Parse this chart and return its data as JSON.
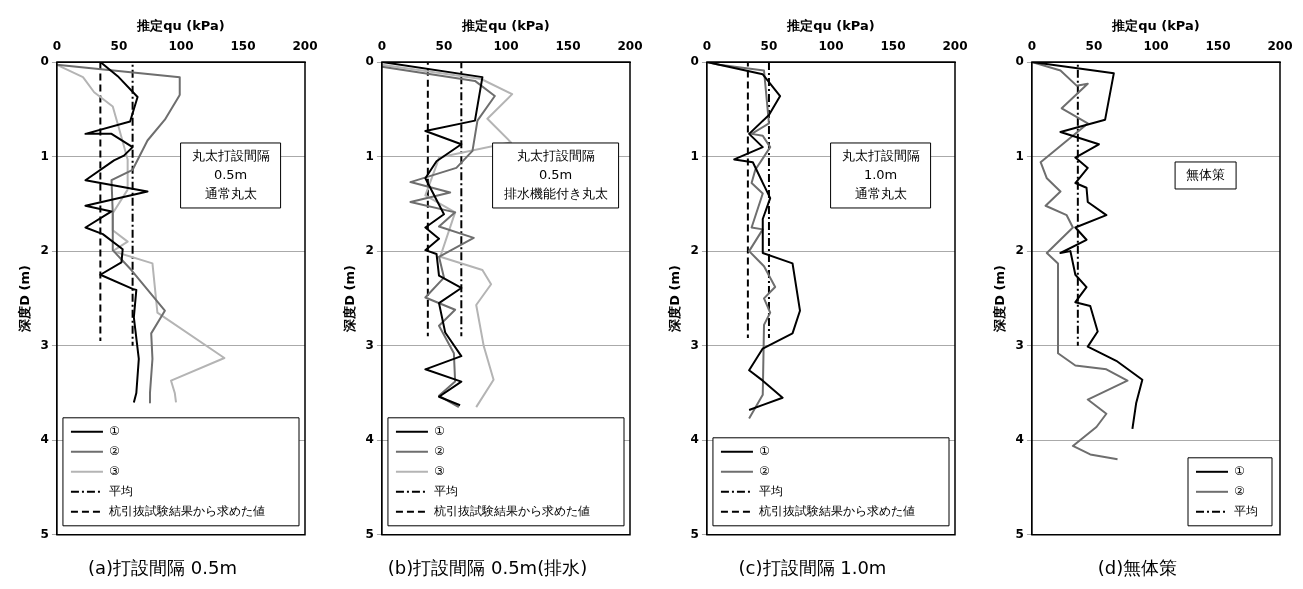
{
  "chart_data": [
    {
      "type": "line",
      "title": "(a)打設間隔 0.5m",
      "xlabel": "推定qu (kPa)",
      "ylabel": "深度D (m)",
      "xlim": [
        0,
        200
      ],
      "xticks": [
        0,
        50,
        100,
        150,
        200
      ],
      "ylim": [
        5,
        0
      ],
      "yticks": [
        0,
        1,
        2,
        3,
        4,
        5
      ],
      "grid": "y",
      "legend": "bottom",
      "marker": "none",
      "annotations": [
        "丸太打設間隔\n0.5m\n通常丸太"
      ],
      "series": [
        {
          "name": "①",
          "color": "#000000",
          "x": [
            35,
            49,
            65,
            59,
            23,
            44,
            61,
            54,
            46,
            23,
            73,
            23,
            44,
            23,
            37,
            53,
            52,
            35,
            61,
            64,
            62,
            66,
            64,
            62
          ],
          "values": [
            0,
            0.15,
            0.37,
            0.63,
            0.76,
            0.76,
            0.9,
            0.99,
            1.04,
            1.25,
            1.37,
            1.52,
            1.58,
            1.75,
            1.82,
            1.98,
            2.12,
            2.25,
            2.4,
            2.41,
            2.7,
            3.14,
            3.5,
            3.6
          ]
        },
        {
          "name": "②",
          "color": "#6e6e6e",
          "x": [
            0,
            99,
            99,
            87,
            73,
            61,
            44,
            45,
            45,
            60,
            87,
            76,
            77,
            75,
            75
          ],
          "values": [
            0.03,
            0.16,
            0.35,
            0.61,
            0.83,
            1.14,
            1.25,
            1.6,
            1.99,
            2.2,
            2.63,
            2.87,
            3.14,
            3.5,
            3.6
          ]
        },
        {
          "name": "③",
          "color": "#b4b4b4",
          "x": [
            0,
            21,
            30,
            45,
            50,
            57,
            57,
            45,
            45,
            57,
            45,
            77,
            81,
            135,
            92,
            95,
            96
          ],
          "values": [
            0.03,
            0.16,
            0.32,
            0.47,
            0.7,
            1.03,
            1.35,
            1.6,
            1.78,
            1.9,
            2.0,
            2.13,
            2.65,
            3.13,
            3.37,
            3.5,
            3.6
          ]
        },
        {
          "name": "平均",
          "color": "#000000",
          "line_style": "dotted",
          "x": [
            61,
            61
          ],
          "values": [
            0,
            3
          ]
        },
        {
          "name": "杭引抜試験結果から求めた値",
          "color": "#000000",
          "line_style": "dashed",
          "x": [
            35,
            35
          ],
          "values": [
            0,
            2.95
          ]
        }
      ]
    },
    {
      "type": "line",
      "title": "(b)打設間隔 0.5m(排水)",
      "xlabel": "推定qu (kPa)",
      "ylabel": "深度D (m)",
      "xlim": [
        0,
        200
      ],
      "xticks": [
        0,
        50,
        100,
        150,
        200
      ],
      "ylim": [
        5,
        0
      ],
      "yticks": [
        0,
        1,
        2,
        3,
        4,
        5
      ],
      "grid": "y",
      "legend": "bottom",
      "marker": "none",
      "annotations": [
        "丸太打設間隔\n0.5m\n排水機能付き丸太"
      ],
      "series": [
        {
          "name": "①",
          "color": "#000000",
          "x": [
            0,
            81,
            75,
            35,
            64,
            44,
            35,
            50,
            35,
            46,
            35,
            44,
            46,
            64,
            46,
            51,
            64,
            35,
            64,
            46,
            63
          ],
          "values": [
            0,
            0.16,
            0.62,
            0.73,
            0.87,
            1.05,
            1.23,
            1.61,
            1.75,
            1.87,
            1.99,
            2.03,
            2.26,
            2.39,
            2.55,
            2.86,
            3.11,
            3.25,
            3.38,
            3.54,
            3.63
          ]
        },
        {
          "name": "②",
          "color": "#6e6e6e",
          "x": [
            0,
            75,
            91,
            77,
            73,
            60,
            23,
            55,
            23,
            59,
            46,
            74,
            46,
            50,
            35,
            59,
            46,
            58,
            59,
            46,
            62
          ],
          "values": [
            0.05,
            0.2,
            0.36,
            0.62,
            0.94,
            1.12,
            1.27,
            1.38,
            1.48,
            1.59,
            1.74,
            1.86,
            2.06,
            2.28,
            2.49,
            2.62,
            2.79,
            3.08,
            3.38,
            3.53,
            3.65
          ]
        },
        {
          "name": "③",
          "color": "#b4b4b4",
          "x": [
            0,
            80,
            105,
            85,
            104,
            46,
            44,
            35,
            59,
            47,
            81,
            88,
            76,
            82,
            90,
            76
          ],
          "values": [
            0.03,
            0.18,
            0.34,
            0.6,
            0.85,
            1.01,
            1.09,
            1.41,
            1.59,
            2.06,
            2.2,
            2.35,
            2.57,
            3.0,
            3.36,
            3.65
          ]
        },
        {
          "name": "平均",
          "color": "#000000",
          "line_style": "dotted",
          "x": [
            64,
            64
          ],
          "values": [
            0,
            2.9
          ]
        },
        {
          "name": "杭引抜試験結果から求めた値",
          "color": "#000000",
          "line_style": "dashed",
          "x": [
            37,
            37
          ],
          "values": [
            0,
            2.9
          ]
        }
      ]
    },
    {
      "type": "line",
      "title": "(c)打設間隔 1.0m",
      "xlabel": "推定qu (kPa)",
      "ylabel": "深度D (m)",
      "xlim": [
        0,
        200
      ],
      "xticks": [
        0,
        50,
        100,
        150,
        200
      ],
      "ylim": [
        5,
        0
      ],
      "yticks": [
        0,
        1,
        2,
        3,
        4,
        5
      ],
      "grid": "y",
      "legend": "bottom",
      "marker": "none",
      "annotations": [
        "丸太打設間隔\n1.0m\n通常丸太"
      ],
      "series": [
        {
          "name": "①",
          "color": "#000000",
          "x": [
            0,
            10,
            45,
            59,
            50,
            34,
            45,
            22,
            37,
            51,
            45,
            45,
            69,
            75,
            69,
            45,
            34,
            45,
            61,
            34
          ],
          "values": [
            0,
            0.03,
            0.13,
            0.36,
            0.56,
            0.76,
            0.9,
            1.03,
            1.06,
            1.44,
            1.66,
            2.02,
            2.13,
            2.63,
            2.87,
            3.03,
            3.26,
            3.37,
            3.55,
            3.68
          ]
        },
        {
          "name": "②",
          "color": "#6e6e6e",
          "x": [
            0,
            10,
            46,
            50,
            36,
            45,
            51,
            39,
            36,
            45,
            36,
            45,
            34,
            46,
            55,
            46,
            51,
            46,
            45,
            34
          ],
          "values": [
            0,
            0.03,
            0.09,
            0.65,
            0.76,
            0.78,
            0.9,
            1.14,
            1.28,
            1.39,
            1.75,
            1.77,
            2.0,
            2.16,
            2.38,
            2.5,
            2.65,
            2.78,
            3.52,
            3.77
          ]
        },
        {
          "name": "平均",
          "color": "#000000",
          "line_style": "dotted",
          "x": [
            50,
            50
          ],
          "values": [
            0,
            2.92
          ]
        },
        {
          "name": "杭引抜試験結果から求めた値",
          "color": "#000000",
          "line_style": "dashed",
          "x": [
            33,
            33
          ],
          "values": [
            0,
            2.92
          ]
        }
      ]
    },
    {
      "type": "line",
      "title": "(d)無体策",
      "xlabel": "推定qu (kPa)",
      "ylabel": "深度D (m)",
      "xlim": [
        0,
        200
      ],
      "xticks": [
        0,
        50,
        100,
        150,
        200
      ],
      "ylim": [
        5,
        0
      ],
      "yticks": [
        0,
        1,
        2,
        3,
        4,
        5
      ],
      "grid": "y",
      "legend": "bottom right",
      "marker": "none",
      "annotations": [
        "無体策"
      ],
      "series": [
        {
          "name": "①",
          "color": "#000000",
          "x": [
            0,
            66,
            59,
            23,
            54,
            35,
            45,
            35,
            44,
            45,
            60,
            35,
            44,
            23,
            31,
            35,
            44,
            35,
            47,
            53,
            45,
            68,
            89,
            84,
            81
          ],
          "values": [
            0,
            0.12,
            0.61,
            0.74,
            0.87,
            1.01,
            1.12,
            1.28,
            1.33,
            1.48,
            1.62,
            1.75,
            1.88,
            2.02,
            2.0,
            2.25,
            2.38,
            2.54,
            2.58,
            2.85,
            3.01,
            3.16,
            3.36,
            3.61,
            3.88
          ]
        },
        {
          "name": "②",
          "color": "#6e6e6e",
          "x": [
            0,
            23,
            36,
            45,
            24,
            45,
            7,
            12,
            23,
            11,
            28,
            33,
            12,
            21,
            21,
            35,
            60,
            77,
            45,
            60,
            52,
            33,
            47,
            69
          ],
          "values": [
            0,
            0.09,
            0.25,
            0.23,
            0.49,
            0.65,
            1.06,
            1.23,
            1.37,
            1.52,
            1.62,
            1.75,
            2.02,
            2.13,
            3.08,
            3.21,
            3.25,
            3.37,
            3.57,
            3.72,
            3.86,
            4.06,
            4.15,
            4.2
          ]
        },
        {
          "name": "平均",
          "color": "#000000",
          "line_style": "dotted",
          "x": [
            37,
            37
          ],
          "values": [
            0,
            3
          ]
        }
      ]
    }
  ]
}
